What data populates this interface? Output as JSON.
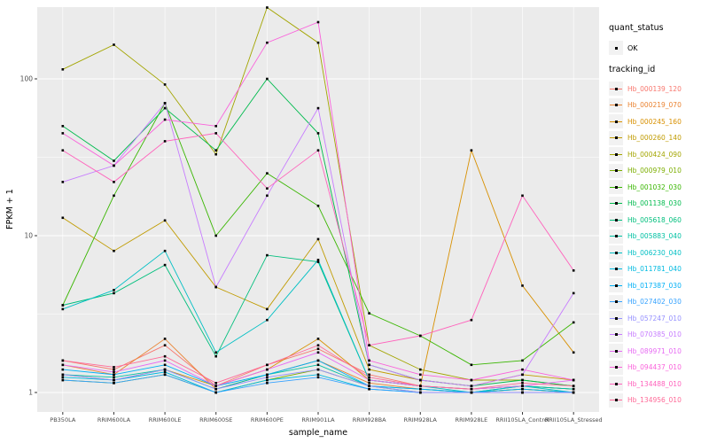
{
  "panel": {
    "bg": "#EBEBEB",
    "grid": "#FFFFFF",
    "tick_color": "#333333",
    "tick_label_color": "#4D4D4D"
  },
  "legend": {
    "quant_title": "quant_status",
    "quant_items": [
      {
        "label": "OK"
      }
    ],
    "tracking_title": "tracking_id"
  },
  "chart_data": {
    "type": "line",
    "title": "",
    "xlabel": "sample_name",
    "ylabel": "FPKM + 1",
    "y_scale": "log10",
    "ylim": [
      1,
      300
    ],
    "grid": "on",
    "legend_position": "right",
    "y_ticks": [
      {
        "value": 100,
        "label": "100"
      },
      {
        "value": 10,
        "label": "10"
      },
      {
        "value": 1,
        "label": "1"
      }
    ],
    "minor_ticks": [
      3.1623,
      31.623
    ],
    "categories": [
      "PB350LA",
      "RRIM600LA",
      "RRIM600LE",
      "RRIM600SE",
      "RRIM600PE",
      "RRIM901LA",
      "RRIM928BA",
      "RRIM928LA",
      "RRIM928LE",
      "RRII105LA_Control",
      "RRII105LA_Stressed"
    ],
    "series": [
      {
        "name": "Hb_000139_120",
        "color": "#F8766D",
        "values": [
          1.6,
          1.4,
          2.0,
          1.1,
          1.5,
          1.9,
          1.3,
          1.1,
          1.05,
          1.1,
          1.05
        ]
      },
      {
        "name": "Hb_000219_070",
        "color": "#EA8331",
        "values": [
          1.5,
          1.3,
          2.2,
          1.05,
          1.3,
          1.6,
          1.15,
          1.05,
          1.0,
          1.05,
          1.0
        ]
      },
      {
        "name": "Hb_000245_160",
        "color": "#D89000",
        "values": [
          1.3,
          1.2,
          1.4,
          1.1,
          1.4,
          2.2,
          1.2,
          1.1,
          35,
          4.8,
          1.8
        ]
      },
      {
        "name": "Hb_000260_140",
        "color": "#C09B00",
        "values": [
          13,
          8,
          12.5,
          4.7,
          3.4,
          9.5,
          1.4,
          1.2,
          1.1,
          1.3,
          1.2
        ]
      },
      {
        "name": "Hb_000424_090",
        "color": "#A3A500",
        "values": [
          115,
          165,
          92,
          33,
          285,
          170,
          2.0,
          1.4,
          1.2,
          1.2,
          1.1
        ]
      },
      {
        "name": "Hb_000979_010",
        "color": "#7CAE00",
        "values": [
          1.2,
          1.15,
          1.3,
          1.0,
          1.2,
          1.4,
          1.1,
          1.0,
          1.0,
          1.05,
          1.0
        ]
      },
      {
        "name": "Hb_001032_030",
        "color": "#39B600",
        "values": [
          3.6,
          18,
          70,
          10,
          25,
          15.5,
          3.2,
          2.3,
          1.5,
          1.6,
          2.8
        ]
      },
      {
        "name": "Hb_001138_030",
        "color": "#00BB4E",
        "values": [
          50,
          30,
          65,
          35,
          100,
          45,
          1.5,
          1.2,
          1.1,
          1.2,
          1.1
        ]
      },
      {
        "name": "Hb_005618_060",
        "color": "#00BF7D",
        "values": [
          3.6,
          4.3,
          6.5,
          1.7,
          7.5,
          6.8,
          1.2,
          1.1,
          1.05,
          1.1,
          1.05
        ]
      },
      {
        "name": "Hb_005883_040",
        "color": "#00C1A3",
        "values": [
          1.3,
          1.25,
          1.4,
          1.05,
          1.3,
          1.5,
          1.1,
          1.05,
          1.0,
          1.1,
          1.05
        ]
      },
      {
        "name": "Hb_006230_040",
        "color": "#00BFC4",
        "values": [
          3.4,
          4.5,
          8,
          1.8,
          2.9,
          7,
          1.2,
          1.1,
          1.0,
          1.1,
          1.0
        ]
      },
      {
        "name": "Hb_011781_040",
        "color": "#00BAE0",
        "values": [
          1.25,
          1.2,
          1.35,
          1.0,
          1.2,
          1.3,
          1.05,
          1.0,
          1.0,
          1.0,
          1.0
        ]
      },
      {
        "name": "Hb_017387_030",
        "color": "#00B0F6",
        "values": [
          1.4,
          1.3,
          1.5,
          1.1,
          1.3,
          1.6,
          1.1,
          1.05,
          1.0,
          1.05,
          1.0
        ]
      },
      {
        "name": "Hb_027402_030",
        "color": "#35A2FF",
        "values": [
          1.2,
          1.15,
          1.3,
          1.0,
          1.15,
          1.25,
          1.05,
          1.0,
          1.0,
          1.0,
          1.0
        ]
      },
      {
        "name": "Hb_057247_010",
        "color": "#9590FF",
        "values": [
          1.3,
          1.2,
          1.4,
          1.05,
          1.25,
          1.4,
          1.1,
          1.0,
          1.0,
          1.0,
          1.0
        ]
      },
      {
        "name": "Hb_070385_010",
        "color": "#C77CFF",
        "values": [
          22,
          28,
          70,
          4.7,
          18,
          65,
          1.5,
          1.2,
          1.1,
          1.3,
          4.3
        ]
      },
      {
        "name": "Hb_089971_010",
        "color": "#E76BF3",
        "values": [
          1.5,
          1.35,
          1.6,
          1.1,
          1.4,
          1.8,
          1.2,
          1.1,
          1.05,
          1.1,
          1.2
        ]
      },
      {
        "name": "Hb_094437_010",
        "color": "#FA62DB",
        "values": [
          45,
          28,
          55,
          50,
          170,
          230,
          1.6,
          1.3,
          1.2,
          1.4,
          1.2
        ]
      },
      {
        "name": "Hb_134488_010",
        "color": "#FF62BC",
        "values": [
          35,
          22,
          40,
          45,
          20,
          35,
          2.0,
          2.3,
          2.9,
          18,
          6
        ]
      },
      {
        "name": "Hb_134956_010",
        "color": "#FF6A98",
        "values": [
          1.6,
          1.45,
          1.7,
          1.15,
          1.5,
          2.0,
          1.25,
          1.1,
          1.05,
          1.15,
          1.1
        ]
      }
    ]
  }
}
